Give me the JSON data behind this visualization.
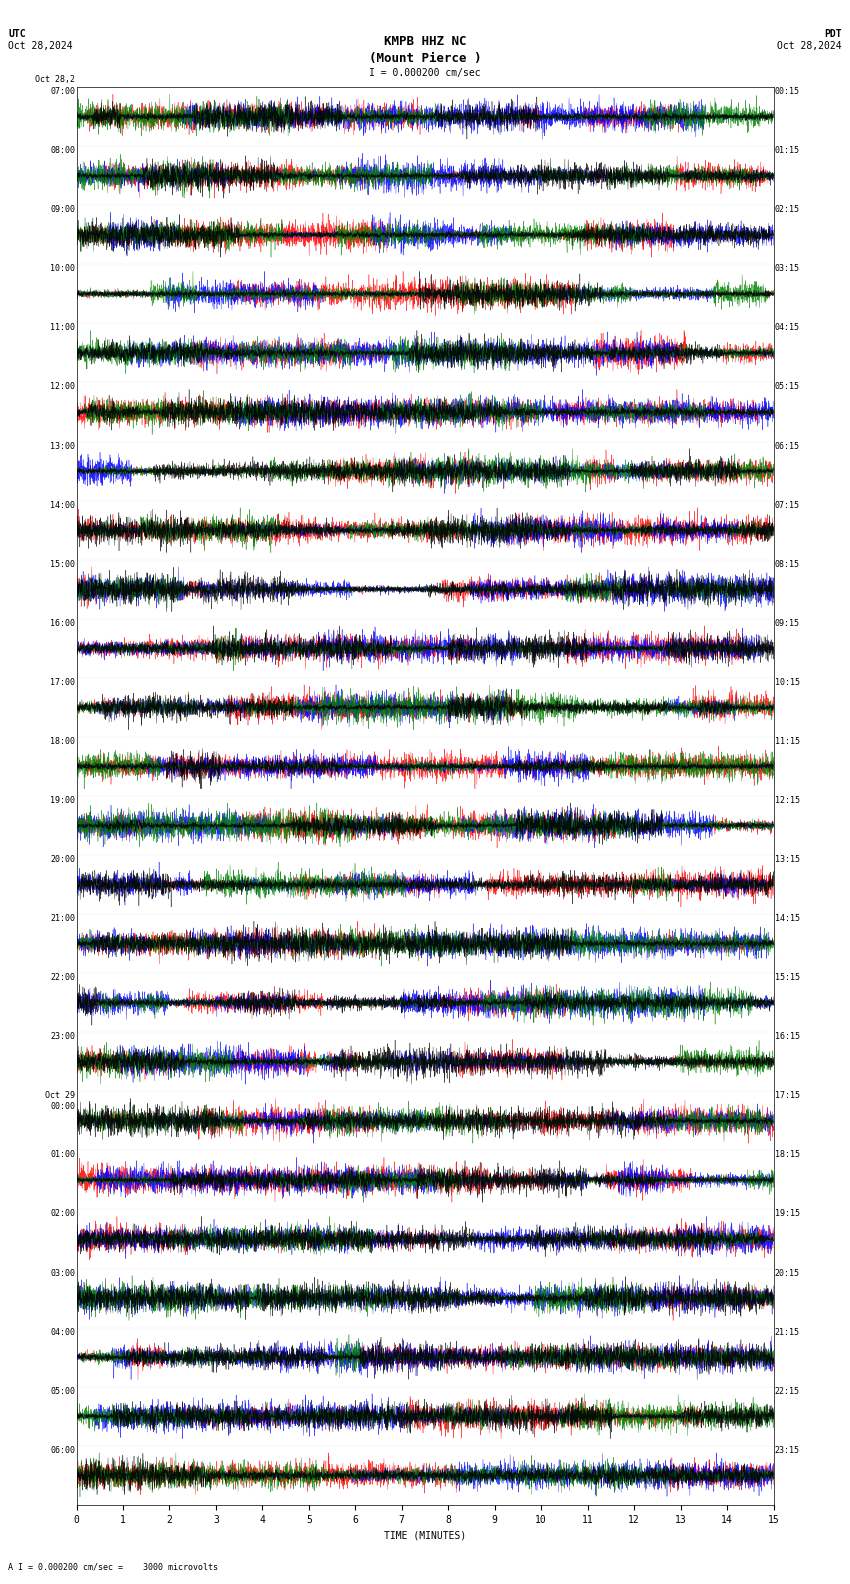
{
  "title_line1": "KMPB HHZ NC",
  "title_line2": "(Mount Pierce )",
  "scale_bar": "I = 0.000200 cm/sec",
  "bottom_label": "A I = 0.000200 cm/sec =    3000 microvolts",
  "utc_label": "UTC",
  "utc_date": "Oct 28,2024",
  "pdt_label": "PDT",
  "pdt_date": "Oct 28,2024",
  "xlabel": "TIME (MINUTES)",
  "left_times_top": "Oct 28,2",
  "left_times": [
    "07:00",
    "08:00",
    "09:00",
    "10:00",
    "11:00",
    "12:00",
    "13:00",
    "14:00",
    "15:00",
    "16:00",
    "17:00",
    "18:00",
    "19:00",
    "20:00",
    "21:00",
    "22:00",
    "23:00",
    "Oct 29\n00:00",
    "01:00",
    "02:00",
    "03:00",
    "04:00",
    "05:00",
    "06:00"
  ],
  "right_times": [
    "00:15",
    "01:15",
    "02:15",
    "03:15",
    "04:15",
    "05:15",
    "06:15",
    "07:15",
    "08:15",
    "09:15",
    "10:15",
    "11:15",
    "12:15",
    "13:15",
    "14:15",
    "15:15",
    "16:15",
    "17:15",
    "18:15",
    "19:15",
    "20:15",
    "21:15",
    "22:15",
    "23:15"
  ],
  "n_rows": 24,
  "xmin": 0,
  "xmax": 15,
  "noise_amplitude": 0.38,
  "colors": [
    "red",
    "blue",
    "green",
    "black"
  ],
  "bg_color": "white",
  "title_fontsize": 9,
  "label_fontsize": 7,
  "tick_fontsize": 7,
  "seed": 42
}
